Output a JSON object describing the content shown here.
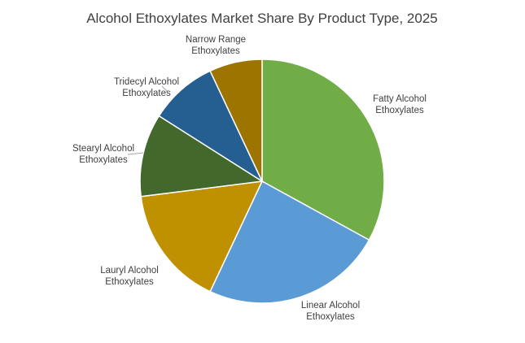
{
  "chart_data": {
    "type": "pie",
    "title": "Alcohol Ethoxylates Market Share By Product Type, 2025",
    "slices": [
      {
        "label": [
          "Fatty Alcohol",
          "Ethoxylates"
        ],
        "value": 33,
        "color": "#70AD47"
      },
      {
        "label": [
          "Linear Alcohol",
          "Ethoxylates"
        ],
        "value": 24,
        "color": "#5B9BD5"
      },
      {
        "label": [
          "Lauryl Alcohol",
          "Ethoxylates"
        ],
        "value": 16,
        "color": "#BF9000"
      },
      {
        "label": [
          "Stearyl Alcohol",
          "Ethoxylates"
        ],
        "value": 11,
        "color": "#43682B"
      },
      {
        "label": [
          "Tridecyl Alcohol",
          "Ethoxylates"
        ],
        "value": 9,
        "color": "#255E91"
      },
      {
        "label": [
          "Narrow Range",
          "Ethoxylates"
        ],
        "value": 7,
        "color": "#9E7400"
      }
    ],
    "legend": "none",
    "data_labels": "category-name-outside"
  }
}
